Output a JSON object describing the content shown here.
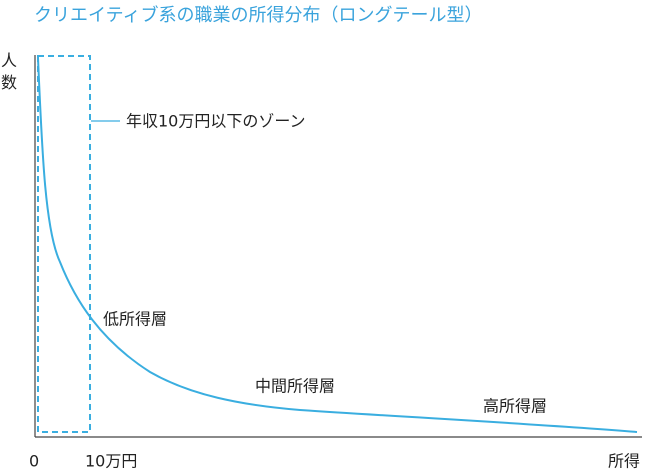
{
  "title": "クリエイティブ系の職業の所得分布（ロングテール型）",
  "y_axis_label": "人数",
  "x_axis_label": "所得",
  "x_labels": [
    "0",
    "10万円"
  ],
  "annotations": {
    "zone": "年収10万円以下のゾーン",
    "low": "低所得層",
    "middle": "中間所得層",
    "high": "高所得層"
  }
}
